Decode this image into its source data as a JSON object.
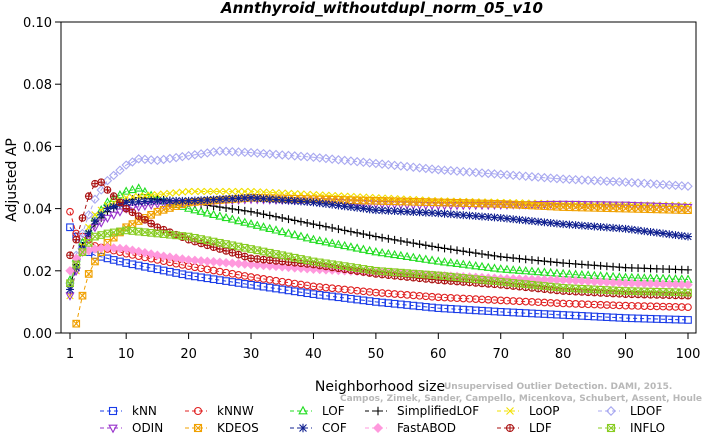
{
  "chart_data": {
    "type": "line",
    "title": "Annthyroid_withoutdupl_norm_05_v10",
    "xlabel": "Neighborhood size",
    "ylabel": "Adjusted AP",
    "xlim": [
      1,
      100
    ],
    "ylim": [
      0.0,
      0.1
    ],
    "xticks": [
      1,
      10,
      20,
      30,
      40,
      50,
      60,
      70,
      80,
      90,
      100
    ],
    "yticks": [
      "0.00",
      "0.02",
      "0.04",
      "0.06",
      "0.08",
      "0.10"
    ],
    "grid": false,
    "legend_position": "bottom",
    "watermark": [
      "Unsupervised Outlier Detection. DAMI, 2015.",
      "Campos, Zimek, Sander, Campello, Micenkova, Schubert, Assent, Houle"
    ],
    "series": [
      {
        "name": "kNN",
        "color": "#1a3ce8",
        "marker": "square",
        "dash": "4,3",
        "points": [
          [
            1,
            0.034
          ],
          [
            2,
            0.031
          ],
          [
            3,
            0.028
          ],
          [
            4,
            0.026
          ],
          [
            5,
            0.025
          ],
          [
            7,
            0.024
          ],
          [
            10,
            0.0225
          ],
          [
            15,
            0.0205
          ],
          [
            20,
            0.0185
          ],
          [
            30,
            0.0155
          ],
          [
            40,
            0.0125
          ],
          [
            50,
            0.01
          ],
          [
            60,
            0.008
          ],
          [
            70,
            0.0068
          ],
          [
            80,
            0.0058
          ],
          [
            90,
            0.0048
          ],
          [
            100,
            0.0042
          ]
        ]
      },
      {
        "name": "kNNW",
        "color": "#e02020",
        "marker": "circle",
        "dash": "4,3",
        "points": [
          [
            1,
            0.039
          ],
          [
            2,
            0.032
          ],
          [
            3,
            0.031
          ],
          [
            4,
            0.03
          ],
          [
            5,
            0.028
          ],
          [
            7,
            0.027
          ],
          [
            10,
            0.0255
          ],
          [
            15,
            0.0235
          ],
          [
            20,
            0.0215
          ],
          [
            30,
            0.018
          ],
          [
            40,
            0.015
          ],
          [
            50,
            0.013
          ],
          [
            60,
            0.0115
          ],
          [
            70,
            0.0105
          ],
          [
            80,
            0.0095
          ],
          [
            90,
            0.0088
          ],
          [
            100,
            0.0083
          ]
        ]
      },
      {
        "name": "LOF",
        "color": "#22dd22",
        "marker": "triangle",
        "dash": "4,3",
        "points": [
          [
            1,
            0.017
          ],
          [
            2,
            0.024
          ],
          [
            3,
            0.029
          ],
          [
            4,
            0.033
          ],
          [
            5,
            0.037
          ],
          [
            7,
            0.042
          ],
          [
            10,
            0.0455
          ],
          [
            12,
            0.0465
          ],
          [
            15,
            0.043
          ],
          [
            20,
            0.04
          ],
          [
            30,
            0.035
          ],
          [
            40,
            0.03
          ],
          [
            50,
            0.026
          ],
          [
            60,
            0.023
          ],
          [
            70,
            0.0205
          ],
          [
            80,
            0.019
          ],
          [
            90,
            0.0178
          ],
          [
            100,
            0.0172
          ]
        ]
      },
      {
        "name": "SimplifiedLOF",
        "color": "#000000",
        "marker": "plus",
        "dash": "4,3",
        "points": [
          [
            1,
            0.015
          ],
          [
            2,
            0.022
          ],
          [
            3,
            0.028
          ],
          [
            4,
            0.032
          ],
          [
            5,
            0.035
          ],
          [
            7,
            0.039
          ],
          [
            10,
            0.0425
          ],
          [
            12,
            0.0435
          ],
          [
            15,
            0.043
          ],
          [
            20,
            0.042
          ],
          [
            30,
            0.039
          ],
          [
            40,
            0.035
          ],
          [
            50,
            0.031
          ],
          [
            60,
            0.0275
          ],
          [
            70,
            0.0245
          ],
          [
            80,
            0.0225
          ],
          [
            90,
            0.021
          ],
          [
            100,
            0.0203
          ]
        ]
      },
      {
        "name": "LoOP",
        "color": "#f2e000",
        "marker": "x",
        "dash": "4,3",
        "points": [
          [
            1,
            0.012
          ],
          [
            2,
            0.02
          ],
          [
            3,
            0.028
          ],
          [
            4,
            0.034
          ],
          [
            5,
            0.038
          ],
          [
            7,
            0.041
          ],
          [
            10,
            0.0435
          ],
          [
            15,
            0.0445
          ],
          [
            20,
            0.0455
          ],
          [
            30,
            0.0455
          ],
          [
            40,
            0.0445
          ],
          [
            50,
            0.0435
          ],
          [
            60,
            0.0425
          ],
          [
            70,
            0.042
          ],
          [
            80,
            0.0415
          ],
          [
            90,
            0.0412
          ],
          [
            100,
            0.041
          ]
        ]
      },
      {
        "name": "LDOF",
        "color": "#a8a8f0",
        "marker": "diamond",
        "dash": "4,3",
        "points": [
          [
            1,
            0.016
          ],
          [
            2,
            0.025
          ],
          [
            3,
            0.032
          ],
          [
            4,
            0.038
          ],
          [
            5,
            0.043
          ],
          [
            7,
            0.049
          ],
          [
            10,
            0.054
          ],
          [
            12,
            0.056
          ],
          [
            15,
            0.0555
          ],
          [
            20,
            0.057
          ],
          [
            25,
            0.0585
          ],
          [
            30,
            0.058
          ],
          [
            40,
            0.0565
          ],
          [
            50,
            0.0545
          ],
          [
            60,
            0.0525
          ],
          [
            70,
            0.051
          ],
          [
            80,
            0.0495
          ],
          [
            90,
            0.0485
          ],
          [
            100,
            0.0472
          ]
        ]
      },
      {
        "name": "ODIN",
        "color": "#9933cc",
        "marker": "triangle-down",
        "dash": "4,3",
        "points": [
          [
            1,
            0.012
          ],
          [
            2,
            0.02
          ],
          [
            3,
            0.026
          ],
          [
            4,
            0.031
          ],
          [
            5,
            0.034
          ],
          [
            7,
            0.037
          ],
          [
            10,
            0.04
          ],
          [
            15,
            0.0415
          ],
          [
            20,
            0.042
          ],
          [
            30,
            0.043
          ],
          [
            40,
            0.0425
          ],
          [
            50,
            0.0415
          ],
          [
            60,
            0.041
          ],
          [
            70,
            0.0412
          ],
          [
            80,
            0.0415
          ],
          [
            90,
            0.0412
          ],
          [
            100,
            0.0405
          ]
        ]
      },
      {
        "name": "KDEOS",
        "color": "#f0a000",
        "marker": "square-x",
        "dash": "4,3",
        "points": [
          [
            2,
            0.003
          ],
          [
            3,
            0.012
          ],
          [
            4,
            0.019
          ],
          [
            5,
            0.023
          ],
          [
            7,
            0.029
          ],
          [
            10,
            0.034
          ],
          [
            15,
            0.039
          ],
          [
            20,
            0.042
          ],
          [
            30,
            0.0435
          ],
          [
            40,
            0.043
          ],
          [
            50,
            0.0425
          ],
          [
            60,
            0.042
          ],
          [
            70,
            0.0415
          ],
          [
            80,
            0.0405
          ],
          [
            90,
            0.04
          ],
          [
            100,
            0.0395
          ]
        ]
      },
      {
        "name": "COF",
        "color": "#102090",
        "marker": "star",
        "dash": "4,3",
        "points": [
          [
            1,
            0.014
          ],
          [
            2,
            0.021
          ],
          [
            3,
            0.027
          ],
          [
            4,
            0.032
          ],
          [
            5,
            0.036
          ],
          [
            7,
            0.04
          ],
          [
            10,
            0.042
          ],
          [
            15,
            0.0425
          ],
          [
            20,
            0.0425
          ],
          [
            30,
            0.0435
          ],
          [
            40,
            0.042
          ],
          [
            50,
            0.0395
          ],
          [
            60,
            0.0385
          ],
          [
            70,
            0.037
          ],
          [
            80,
            0.035
          ],
          [
            90,
            0.0335
          ],
          [
            100,
            0.031
          ]
        ]
      },
      {
        "name": "FastABOD",
        "color": "#ff99dd",
        "marker": "diamond-fill",
        "dash": "4,3",
        "points": [
          [
            1,
            0.02
          ],
          [
            2,
            0.024
          ],
          [
            3,
            0.026
          ],
          [
            5,
            0.027
          ],
          [
            7,
            0.0275
          ],
          [
            10,
            0.027
          ],
          [
            15,
            0.025
          ],
          [
            20,
            0.0235
          ],
          [
            30,
            0.022
          ],
          [
            40,
            0.0205
          ],
          [
            50,
            0.0195
          ],
          [
            60,
            0.0185
          ],
          [
            70,
            0.0175
          ],
          [
            80,
            0.017
          ],
          [
            90,
            0.016
          ],
          [
            100,
            0.0155
          ]
        ]
      },
      {
        "name": "LDF",
        "color": "#aa1111",
        "marker": "circle-plus",
        "dash": "4,3",
        "points": [
          [
            1,
            0.025
          ],
          [
            2,
            0.03
          ],
          [
            3,
            0.037
          ],
          [
            4,
            0.044
          ],
          [
            5,
            0.048
          ],
          [
            6,
            0.0485
          ],
          [
            7,
            0.046
          ],
          [
            10,
            0.04
          ],
          [
            15,
            0.034
          ],
          [
            20,
            0.03
          ],
          [
            30,
            0.024
          ],
          [
            40,
            0.022
          ],
          [
            50,
            0.019
          ],
          [
            60,
            0.017
          ],
          [
            70,
            0.0155
          ],
          [
            80,
            0.0135
          ],
          [
            90,
            0.0125
          ],
          [
            100,
            0.012
          ]
        ]
      },
      {
        "name": "INFLO",
        "color": "#88cc22",
        "marker": "hourglass",
        "dash": "4,3",
        "points": [
          [
            1,
            0.016
          ],
          [
            2,
            0.022
          ],
          [
            3,
            0.026
          ],
          [
            4,
            0.029
          ],
          [
            5,
            0.031
          ],
          [
            7,
            0.032
          ],
          [
            10,
            0.033
          ],
          [
            15,
            0.032
          ],
          [
            20,
            0.031
          ],
          [
            25,
            0.029
          ],
          [
            30,
            0.027
          ],
          [
            40,
            0.023
          ],
          [
            50,
            0.02
          ],
          [
            60,
            0.0185
          ],
          [
            70,
            0.0165
          ],
          [
            80,
            0.0145
          ],
          [
            90,
            0.0135
          ],
          [
            100,
            0.013
          ]
        ]
      }
    ]
  }
}
